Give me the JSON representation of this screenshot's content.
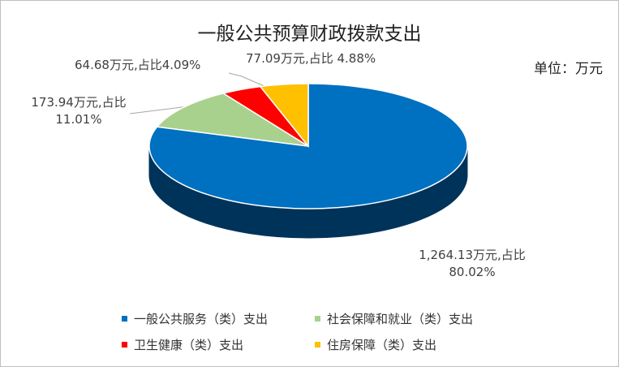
{
  "chart_data": {
    "type": "pie",
    "title": "一般公共预算财政拨款支出",
    "unit_label": "单位：万元",
    "categories": [
      "一般公共服务（类）支出",
      "社会保障和就业（类）支出",
      "卫生健康（类）支出",
      "住房保障（类）支出"
    ],
    "values": [
      1264.13,
      173.94,
      64.68,
      77.09
    ],
    "value_labels": [
      "1,264.13万元,占比 80.02%",
      "173.94万元,占比 11.01%",
      "64.68万元,占比4.09%",
      "77.09万元,占比 4.88%"
    ],
    "colors": [
      "#0070c0",
      "#a9d18e",
      "#ff0000",
      "#ffc000"
    ],
    "side_colors": [
      "#00335a",
      "#6f8a5c",
      "#a00000",
      "#a67c00"
    ]
  }
}
